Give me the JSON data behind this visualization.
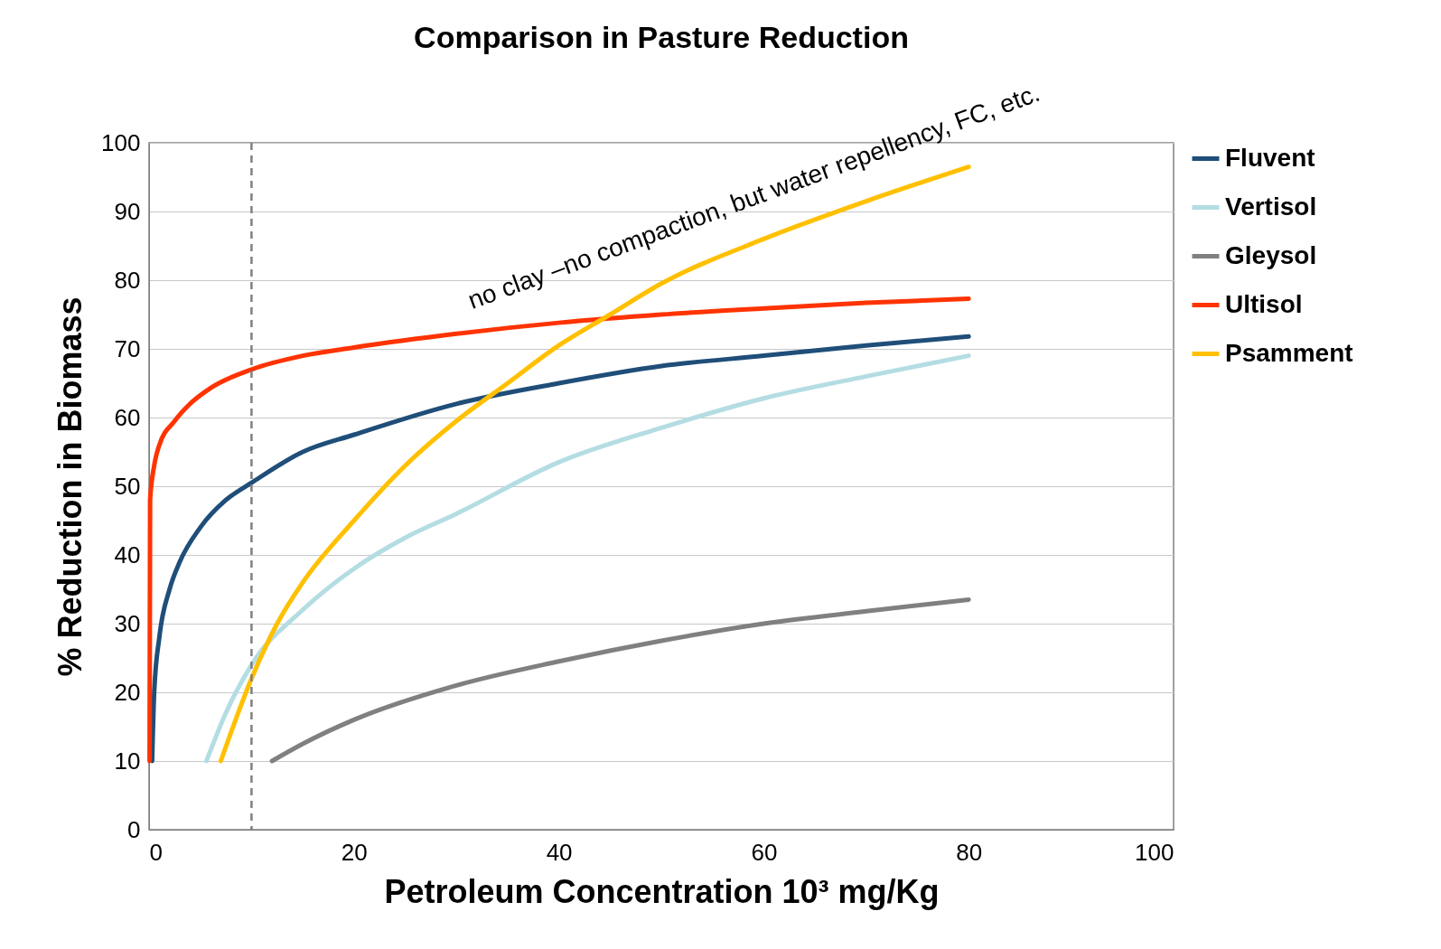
{
  "chart_data": {
    "type": "line",
    "title": "Comparison in Pasture Reduction",
    "xlabel": "Petroleum Concentration 10³ mg/Kg",
    "ylabel": "% Reduction in Biomass",
    "xlim": [
      0,
      100
    ],
    "xticks": [
      0,
      20,
      40,
      60,
      80,
      100
    ],
    "ylim": [
      0,
      100
    ],
    "yticks": [
      0,
      10,
      20,
      30,
      40,
      50,
      60,
      70,
      80,
      90,
      100
    ],
    "grid": "y",
    "legend": "right",
    "line_style": "solid",
    "marker": "none",
    "series": [
      {
        "name": "Fluvent",
        "color": "#1f4e79",
        "x": [
          0.3,
          0.5,
          1,
          2,
          3,
          5,
          7.5,
          10,
          15,
          20,
          30,
          40,
          50,
          60,
          70,
          80
        ],
        "values": [
          10,
          20,
          28,
          35,
          39,
          44,
          48,
          50.5,
          55,
          57.5,
          62,
          65,
          67.5,
          69,
          70.5,
          71.8
        ]
      },
      {
        "name": "Vertisol",
        "color": "#b4dde3",
        "x": [
          5.6,
          7.5,
          10,
          15,
          20,
          25,
          30,
          40,
          50,
          60,
          70,
          80
        ],
        "values": [
          10,
          17,
          24,
          32,
          38,
          42.5,
          46,
          53.5,
          58.5,
          62.8,
          66,
          69
        ]
      },
      {
        "name": "Gleysol",
        "color": "#808080",
        "x": [
          12,
          15,
          20,
          30,
          40,
          50,
          60,
          70,
          80
        ],
        "values": [
          10,
          12.5,
          16,
          21,
          24.5,
          27.5,
          30,
          31.8,
          33.5
        ]
      },
      {
        "name": "Ultisol",
        "color": "#ff3300",
        "x": [
          0.05,
          0.1,
          0.5,
          1,
          2.5,
          4,
          6,
          10,
          15,
          20,
          30,
          40,
          50,
          60,
          70,
          80
        ],
        "values": [
          10,
          48,
          53,
          56,
          59.5,
          62,
          64.3,
          67,
          69,
          70.2,
          72.2,
          73.8,
          75,
          75.9,
          76.7,
          77.3
        ]
      },
      {
        "name": "Psamment",
        "color": "#ffc000",
        "x": [
          7,
          10,
          12.5,
          15,
          20,
          25,
          30,
          35,
          40,
          45,
          50,
          60,
          70,
          80
        ],
        "values": [
          10,
          22,
          30,
          36,
          45,
          53,
          59.5,
          65,
          70.5,
          75,
          79.5,
          86,
          91.5,
          96.5
        ]
      }
    ],
    "ref_lines": [
      {
        "axis": "x",
        "value": 10,
        "color": "#808080",
        "line_style": "dashed"
      }
    ],
    "annotations": [
      "no clay –no compaction, but water repellency, FC, etc."
    ]
  }
}
